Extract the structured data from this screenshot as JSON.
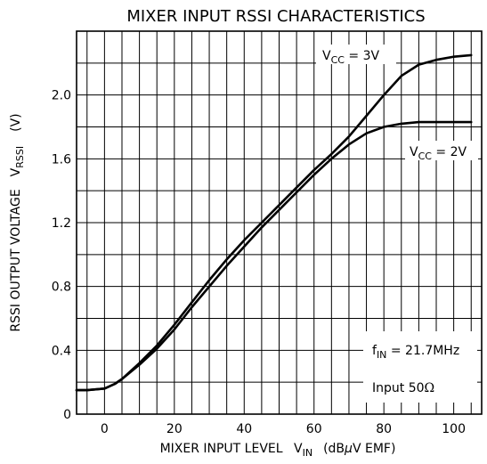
{
  "chart_data": {
    "type": "line",
    "title": "MIXER INPUT RSSI CHARACTERISTICS",
    "xlabel": {
      "main": "MIXER INPUT LEVEL",
      "var": "V",
      "var_sub": "IN",
      "unit_pre": "(dB",
      "unit_mu": "μ",
      "unit_post": "V EMF)"
    },
    "ylabel": {
      "main": "RSSI OUTPUT VOLTAGE",
      "var": "V",
      "var_sub": "RSSI",
      "unit": "(V)"
    },
    "xlim": [
      -8,
      108
    ],
    "ylim": [
      0,
      2.4
    ],
    "x_ticks": [
      0,
      20,
      40,
      60,
      80,
      100
    ],
    "y_ticks": [
      0,
      0.4,
      0.8,
      1.2,
      1.6,
      2.0
    ],
    "y_tick_labels": [
      "0",
      "0.4",
      "0.8",
      "1.2",
      "1.6",
      "2.0"
    ],
    "x_gridlines": [
      -5,
      0,
      5,
      10,
      15,
      20,
      25,
      30,
      35,
      40,
      45,
      50,
      55,
      60,
      65,
      70,
      75,
      80,
      85,
      90,
      95,
      100,
      105
    ],
    "y_gridlines": [
      0.2,
      0.4,
      0.6,
      0.8,
      1.0,
      1.2,
      1.4,
      1.6,
      1.8,
      2.0,
      2.2
    ],
    "grid": true,
    "series": [
      {
        "name": "VCC = 3V",
        "label_main": "V",
        "label_sub": "CC",
        "label_value": " = 3V",
        "x": [
          -8,
          -5,
          0,
          3,
          5,
          10,
          15,
          20,
          25,
          30,
          35,
          40,
          45,
          50,
          55,
          60,
          65,
          70,
          75,
          80,
          85,
          90,
          95,
          100,
          105
        ],
        "y": [
          0.15,
          0.15,
          0.16,
          0.19,
          0.22,
          0.32,
          0.43,
          0.56,
          0.7,
          0.84,
          0.97,
          1.09,
          1.2,
          1.31,
          1.42,
          1.53,
          1.63,
          1.74,
          1.87,
          2.0,
          2.12,
          2.19,
          2.22,
          2.24,
          2.25
        ]
      },
      {
        "name": "VCC = 2V",
        "label_main": "V",
        "label_sub": "CC",
        "label_value": " = 2V",
        "x": [
          -8,
          -5,
          0,
          3,
          5,
          10,
          15,
          20,
          25,
          30,
          35,
          40,
          45,
          50,
          55,
          60,
          65,
          70,
          75,
          80,
          85,
          90,
          95,
          100,
          105
        ],
        "y": [
          0.15,
          0.15,
          0.16,
          0.19,
          0.22,
          0.31,
          0.41,
          0.53,
          0.67,
          0.8,
          0.93,
          1.05,
          1.17,
          1.28,
          1.39,
          1.5,
          1.6,
          1.69,
          1.76,
          1.8,
          1.82,
          1.83,
          1.83,
          1.83,
          1.83
        ]
      }
    ],
    "annotations": {
      "fin_main": "f",
      "fin_sub": "IN",
      "fin_value": " = 21.7MHz",
      "input_text": "Input  50",
      "omega": "Ω"
    }
  }
}
